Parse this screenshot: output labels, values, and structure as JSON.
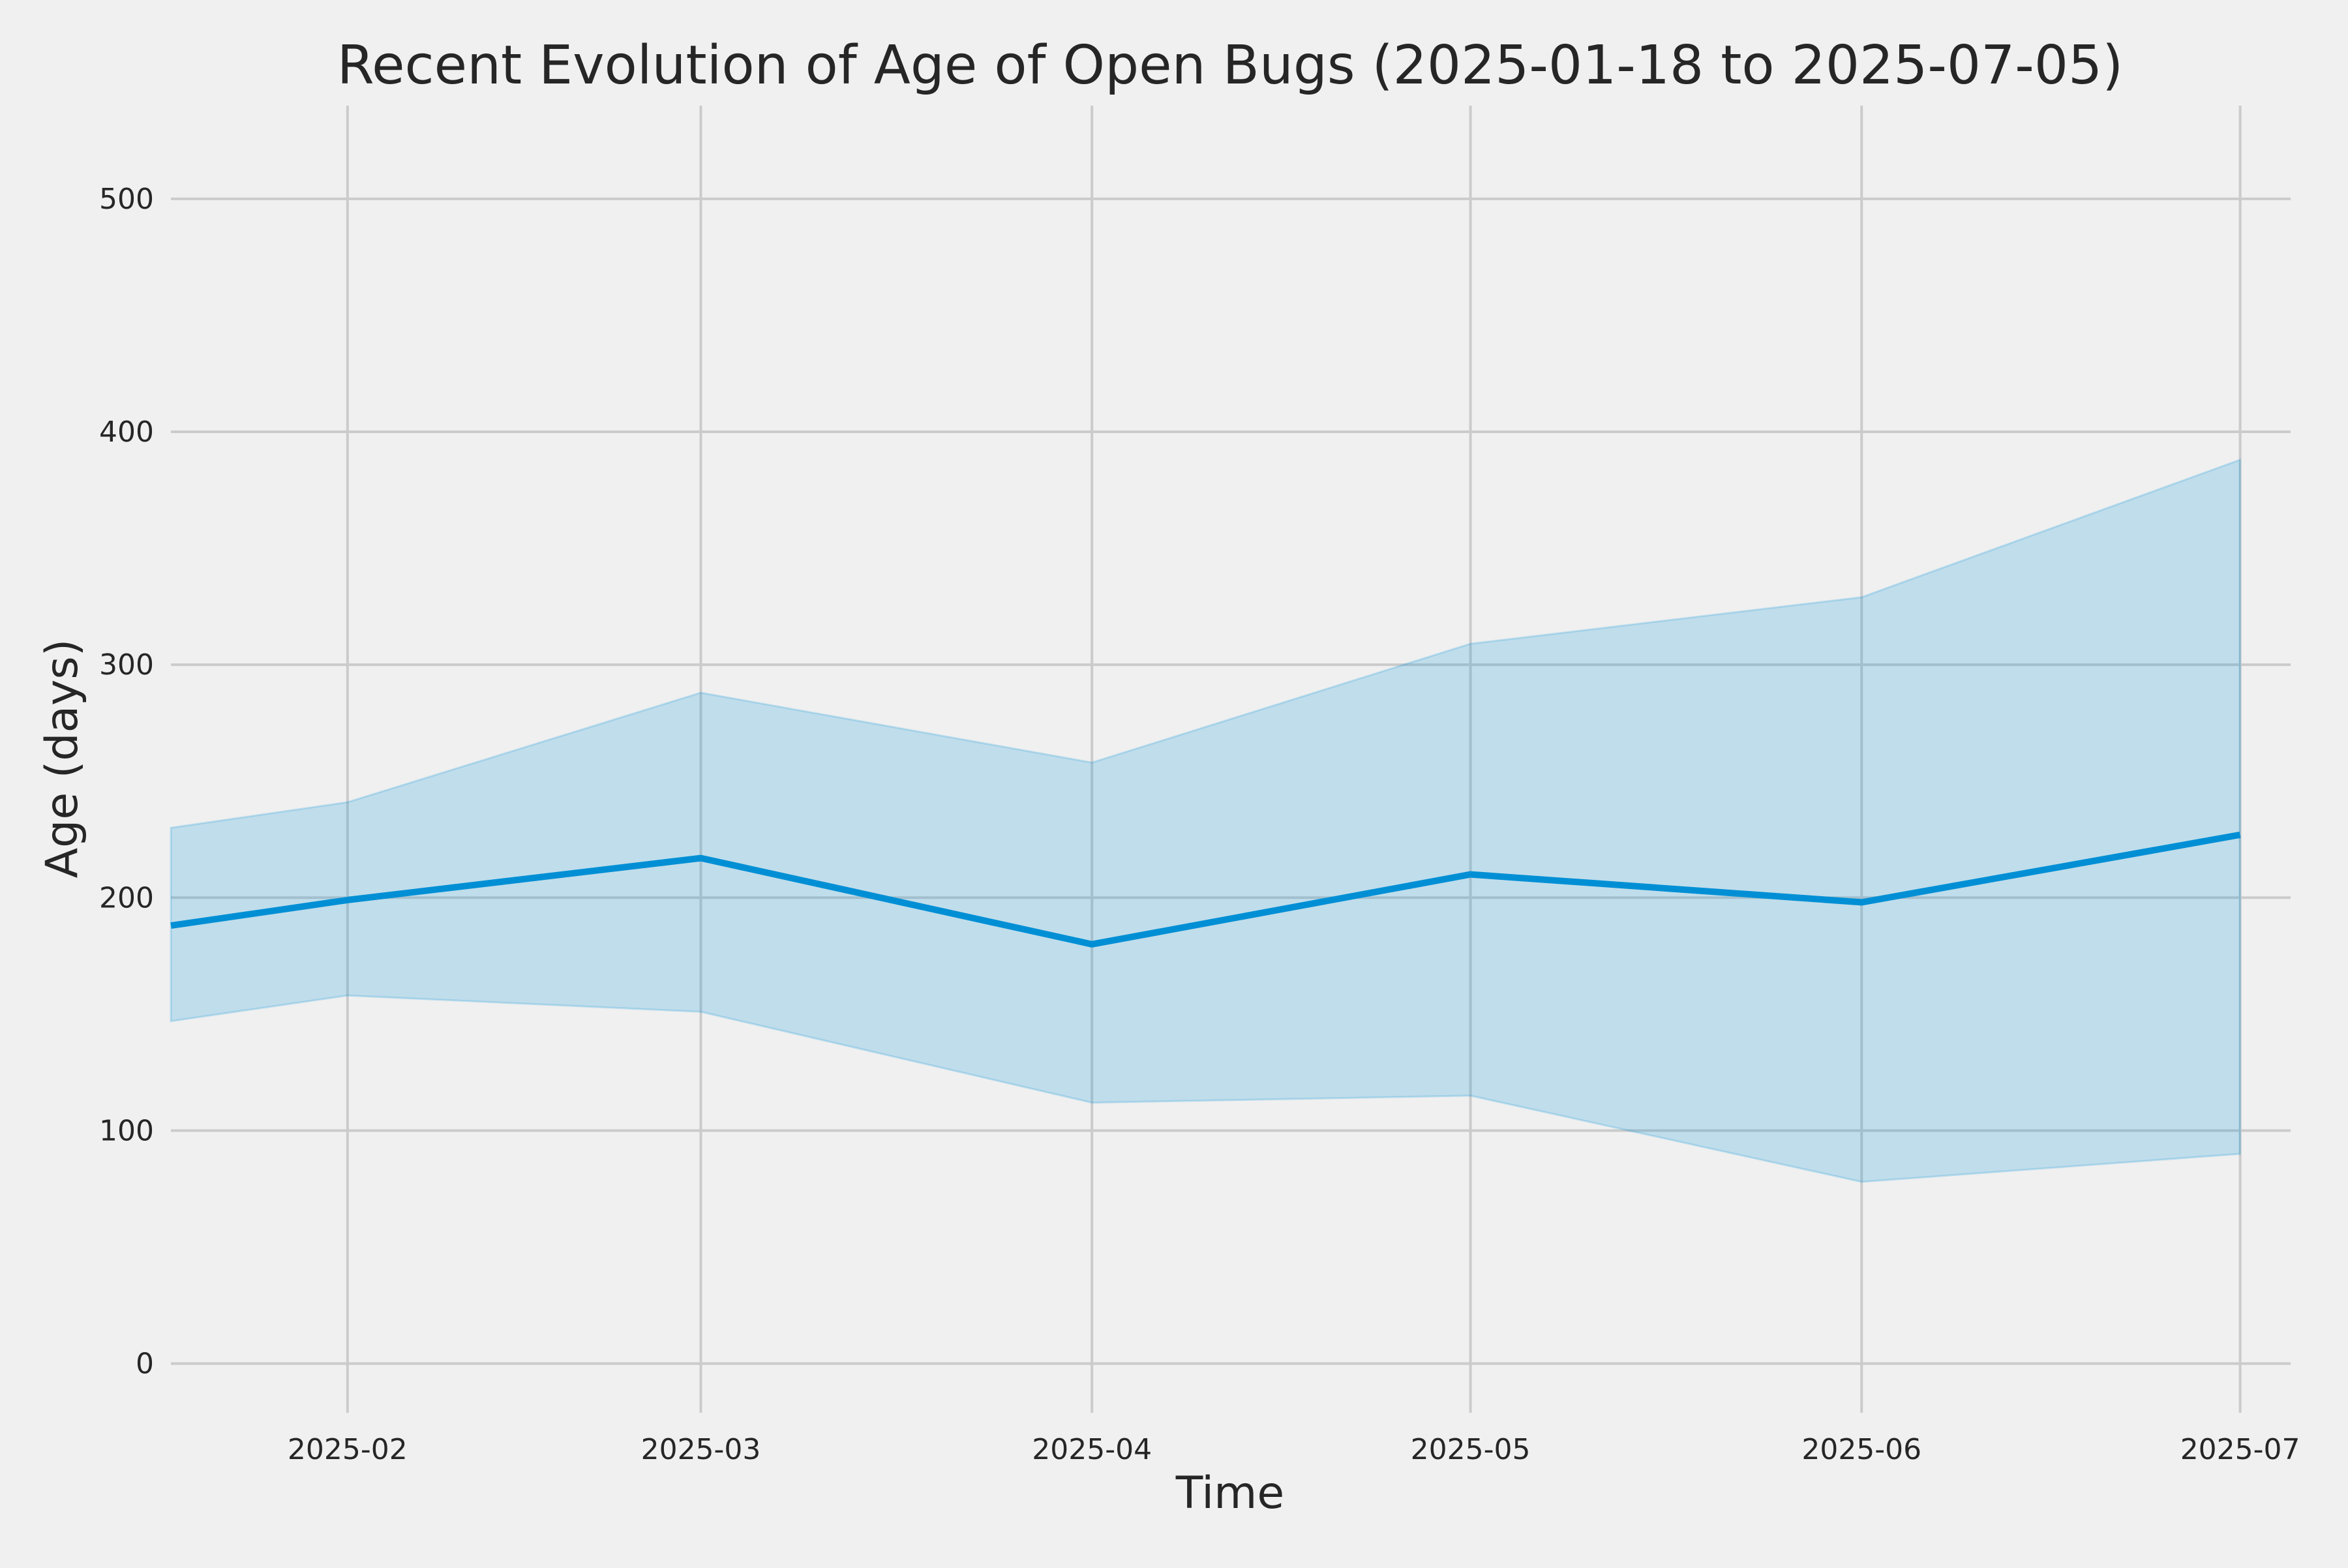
{
  "chart_data": {
    "type": "line",
    "title": "Recent Evolution of Age of Open Bugs (2025-01-18 to 2025-07-05)",
    "xlabel": "Time",
    "ylabel": "Age (days)",
    "x": [
      "2025-01-18",
      "2025-02-01",
      "2025-03-01",
      "2025-04-01",
      "2025-05-01",
      "2025-06-01",
      "2025-07-01"
    ],
    "series": [
      {
        "values": [
          188,
          199,
          217,
          180,
          210,
          198,
          227
        ],
        "band_upper": [
          230,
          241,
          288,
          258,
          309,
          329,
          388
        ],
        "band_lower": [
          147,
          158,
          151,
          112,
          115,
          78,
          90
        ]
      }
    ],
    "xticks": [
      "2025-02",
      "2025-03",
      "2025-04",
      "2025-05",
      "2025-06",
      "2025-07"
    ],
    "xtick_dates": [
      "2025-02-01",
      "2025-03-01",
      "2025-04-01",
      "2025-05-01",
      "2025-06-01",
      "2025-07-01"
    ],
    "xlim": [
      "2025-01-18",
      "2025-07-05"
    ],
    "yticks": [
      0,
      100,
      200,
      300,
      400,
      500
    ],
    "ylim": [
      -20,
      540
    ],
    "grid": true,
    "line_color": "#008fd5",
    "band_color": "#008fd5",
    "grid_color": "#cbcbcb",
    "background": "#f0f0f0"
  }
}
